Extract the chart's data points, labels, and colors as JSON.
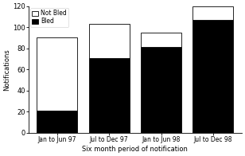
{
  "categories": [
    "Jan to Jun 97",
    "Jul to Dec 97",
    "Jan to Jun 98",
    "Jul to Dec 98"
  ],
  "bled": [
    21,
    71,
    81,
    107
  ],
  "not_bled": [
    69,
    32,
    14,
    13
  ],
  "bled_color": "#000000",
  "not_bled_color": "#ffffff",
  "bar_edge_color": "#000000",
  "ylabel": "Notifications",
  "xlabel": "Six month period of notification",
  "ylim": [
    0,
    120
  ],
  "yticks": [
    0,
    20,
    40,
    60,
    80,
    100,
    120
  ],
  "legend_not_bled": "Not Bled",
  "legend_bled": "Bled",
  "bar_width": 0.78
}
